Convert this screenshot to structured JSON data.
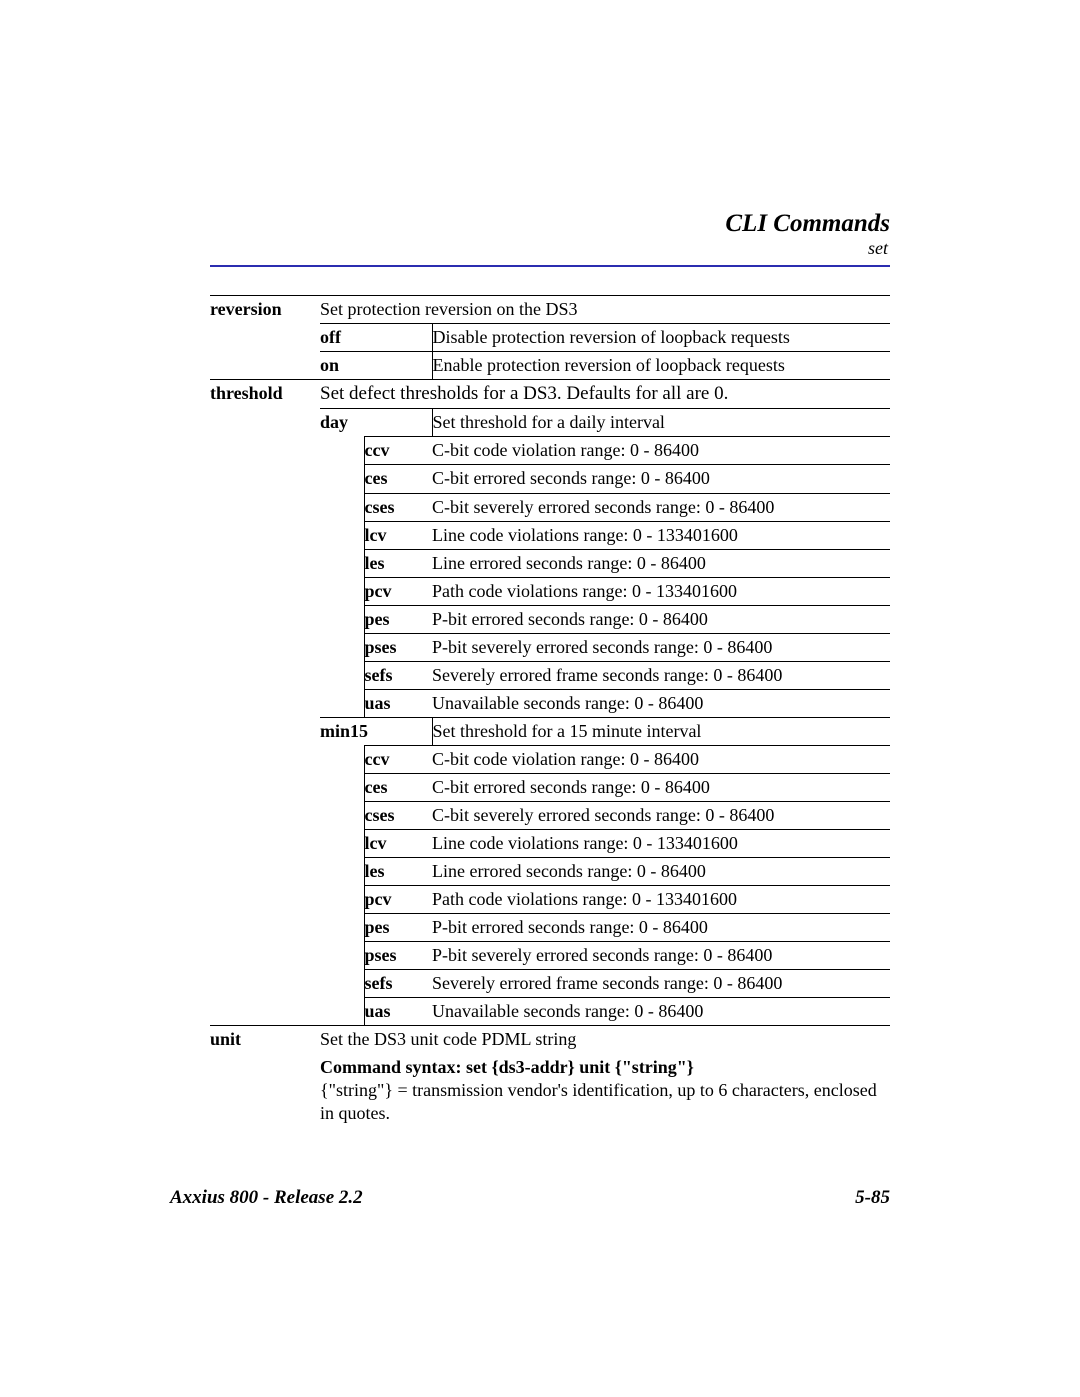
{
  "header": {
    "title": "CLI Commands",
    "subtitle": "set",
    "rule_color": "#2b2db0"
  },
  "footer": {
    "left": "Axxius 800 - Release 2.2",
    "right": "5-85"
  },
  "table": {
    "font_family": "Times New Roman",
    "reversion": {
      "label": "reversion",
      "desc": "Set protection reversion on the DS3",
      "options": [
        {
          "key": "off",
          "desc": "Disable protection reversion of loopback requests"
        },
        {
          "key": "on",
          "desc": "Enable protection reversion of loopback requests"
        }
      ]
    },
    "threshold": {
      "label": "threshold",
      "desc": "Set defect thresholds for a DS3. Defaults for all are 0.",
      "groups": [
        {
          "key": "day",
          "desc": "Set threshold for a daily interval",
          "items": [
            {
              "key": "ccv",
              "desc": "C-bit code violation range: 0 - 86400"
            },
            {
              "key": "ces",
              "desc": "C-bit errored seconds range: 0 - 86400"
            },
            {
              "key": "cses",
              "desc": "C-bit severely errored seconds range: 0 - 86400"
            },
            {
              "key": "lcv",
              "desc": "Line code violations range: 0 - 133401600"
            },
            {
              "key": "les",
              "desc": "Line errored seconds range: 0 - 86400"
            },
            {
              "key": "pcv",
              "desc": "Path code violations range: 0 - 133401600"
            },
            {
              "key": "pes",
              "desc": "P-bit errored seconds range: 0 - 86400"
            },
            {
              "key": "pses",
              "desc": "P-bit severely errored seconds range: 0 - 86400"
            },
            {
              "key": "sefs",
              "desc": "Severely errored frame seconds range: 0 - 86400"
            },
            {
              "key": "uas",
              "desc": "Unavailable seconds range: 0 - 86400"
            }
          ]
        },
        {
          "key": "min15",
          "desc": "Set threshold for a 15 minute interval",
          "items": [
            {
              "key": "ccv",
              "desc": "C-bit code violation range: 0 - 86400"
            },
            {
              "key": "ces",
              "desc": "C-bit errored seconds range: 0 - 86400"
            },
            {
              "key": "cses",
              "desc": "C-bit severely errored seconds range: 0 - 86400"
            },
            {
              "key": "lcv",
              "desc": "Line code violations range: 0 - 133401600"
            },
            {
              "key": "les",
              "desc": "Line errored seconds range: 0 - 86400"
            },
            {
              "key": "pcv",
              "desc": "Path code violations range: 0 - 133401600"
            },
            {
              "key": "pes",
              "desc": "P-bit errored seconds range: 0 - 86400"
            },
            {
              "key": "pses",
              "desc": "P-bit severely errored seconds range: 0 - 86400"
            },
            {
              "key": "sefs",
              "desc": "Severely errored frame seconds range: 0 - 86400"
            },
            {
              "key": "uas",
              "desc": "Unavailable seconds range: 0 - 86400"
            }
          ]
        }
      ]
    },
    "unit": {
      "label": "unit",
      "desc": "Set the DS3 unit code PDML string",
      "syntax_label": "Command syntax: set {ds3-addr} unit {\"string\"}",
      "syntax_desc": "{\"string\"} = transmission vendor's identification, up to 6 characters, enclosed in quotes."
    }
  }
}
